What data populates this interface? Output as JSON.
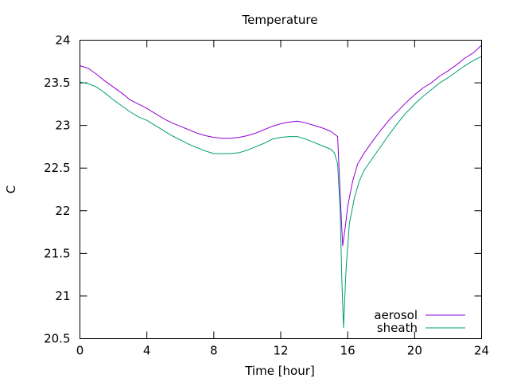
{
  "chart_data": {
    "type": "line",
    "title": "Temperature",
    "xlabel": "Time [hour]",
    "ylabel": "C",
    "xlim": [
      0,
      24
    ],
    "ylim": [
      20.5,
      24
    ],
    "xticks": [
      0,
      4,
      8,
      12,
      16,
      20,
      24
    ],
    "xtick_labels": [
      "0",
      "4",
      "8",
      "12",
      "16",
      "20",
      "24"
    ],
    "yticks": [
      20.5,
      21,
      21.5,
      22,
      22.5,
      23,
      23.5,
      24
    ],
    "ytick_labels": [
      "20.5",
      "21",
      "21.5",
      "22",
      "22.5",
      "23",
      "23.5",
      "24"
    ],
    "grid": false,
    "legend_position": "bottom-right",
    "series": [
      {
        "name": "aerosol",
        "color": "#9400d3",
        "x": [
          0,
          0.5,
          1,
          1.5,
          2,
          2.5,
          3,
          3.5,
          4,
          4.5,
          5,
          5.5,
          6,
          6.5,
          7,
          7.5,
          8,
          8.5,
          9,
          9.5,
          10,
          10.5,
          11,
          11.5,
          12,
          12.5,
          13,
          13.5,
          14,
          14.5,
          15,
          15.2,
          15.4,
          15.55,
          15.7,
          15.85,
          16,
          16.3,
          16.6,
          17,
          17.5,
          18,
          18.5,
          19,
          19.5,
          20,
          20.5,
          21,
          21.5,
          22,
          22.5,
          23,
          23.5,
          24
        ],
        "y": [
          23.7,
          23.67,
          23.6,
          23.52,
          23.45,
          23.38,
          23.3,
          23.25,
          23.2,
          23.14,
          23.08,
          23.03,
          22.99,
          22.95,
          22.91,
          22.88,
          22.86,
          22.85,
          22.85,
          22.86,
          22.88,
          22.91,
          22.95,
          22.99,
          23.02,
          23.04,
          23.05,
          23.03,
          23.0,
          22.97,
          22.93,
          22.9,
          22.87,
          22.2,
          21.59,
          21.8,
          22.05,
          22.35,
          22.55,
          22.68,
          22.82,
          22.95,
          23.07,
          23.17,
          23.27,
          23.36,
          23.44,
          23.5,
          23.58,
          23.64,
          23.71,
          23.79,
          23.85,
          23.94
        ]
      },
      {
        "name": "sheath",
        "color": "#009e73",
        "x": [
          0,
          0.5,
          1,
          1.5,
          2,
          2.5,
          3,
          3.5,
          4,
          4.5,
          5,
          5.5,
          6,
          6.5,
          7,
          7.5,
          8,
          8.5,
          9,
          9.5,
          10,
          10.5,
          11,
          11.5,
          12,
          12.5,
          13,
          13.5,
          14,
          14.5,
          15,
          15.2,
          15.4,
          15.55,
          15.65,
          15.75,
          15.9,
          16.1,
          16.4,
          16.7,
          17,
          17.5,
          18,
          18.5,
          19,
          19.5,
          20,
          20.5,
          21,
          21.5,
          22,
          22.5,
          23,
          23.5,
          24
        ],
        "y": [
          23.51,
          23.49,
          23.45,
          23.38,
          23.3,
          23.23,
          23.16,
          23.1,
          23.06,
          23.0,
          22.94,
          22.88,
          22.83,
          22.78,
          22.74,
          22.7,
          22.67,
          22.67,
          22.67,
          22.68,
          22.71,
          22.75,
          22.79,
          22.84,
          22.86,
          22.87,
          22.87,
          22.84,
          22.8,
          22.76,
          22.72,
          22.68,
          22.55,
          22.0,
          21.2,
          20.63,
          21.3,
          21.85,
          22.15,
          22.35,
          22.48,
          22.62,
          22.76,
          22.9,
          23.03,
          23.15,
          23.25,
          23.34,
          23.42,
          23.5,
          23.56,
          23.63,
          23.7,
          23.76,
          23.81
        ]
      }
    ]
  }
}
